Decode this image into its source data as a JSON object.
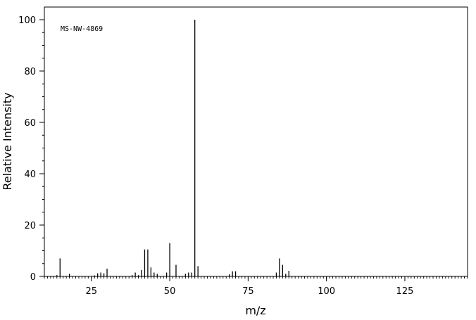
{
  "chart_data": {
    "type": "bar",
    "annotation": "MS-NW-4869",
    "xlabel": "m/z",
    "ylabel": "Relative Intensity",
    "xlim": [
      10,
      145
    ],
    "ylim": [
      0,
      100
    ],
    "x_ticks": [
      "25",
      "50",
      "75",
      "100",
      "125"
    ],
    "y_ticks": [
      "0",
      "20",
      "40",
      "60",
      "80",
      "100"
    ],
    "x_tick_values": [
      25,
      50,
      75,
      100,
      125
    ],
    "y_tick_values": [
      0,
      20,
      40,
      60,
      80,
      100
    ],
    "x_minor_step": 1,
    "y_minor_step": 5,
    "grid": false,
    "series": [
      {
        "x": [
          14,
          15,
          18,
          26,
          27,
          28,
          29,
          30,
          38,
          39,
          40,
          41,
          42,
          43,
          44,
          45,
          46,
          49,
          50,
          52,
          55,
          56,
          57,
          58,
          59,
          69,
          70,
          71,
          84,
          85,
          86,
          87,
          88
        ],
        "values": [
          0.5,
          7,
          1,
          0.4,
          1.2,
          1.5,
          1.2,
          3,
          0.5,
          1.5,
          0.5,
          2.5,
          10.5,
          10.5,
          3.5,
          1.5,
          1,
          1.5,
          13,
          4.5,
          1,
          1.5,
          1.5,
          100,
          4,
          0.8,
          2,
          2,
          1.5,
          7,
          4.5,
          1,
          2.2
        ]
      }
    ]
  }
}
